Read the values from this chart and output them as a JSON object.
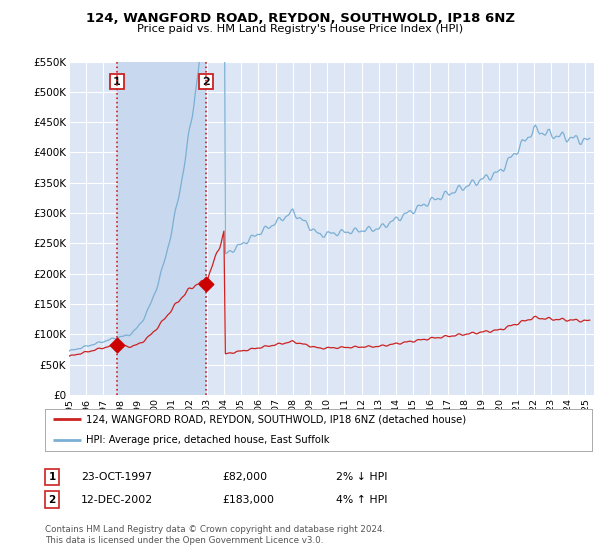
{
  "title": "124, WANGFORD ROAD, REYDON, SOUTHWOLD, IP18 6NZ",
  "subtitle": "Price paid vs. HM Land Registry's House Price Index (HPI)",
  "legend_line1": "124, WANGFORD ROAD, REYDON, SOUTHWOLD, IP18 6NZ (detached house)",
  "legend_line2": "HPI: Average price, detached house, East Suffolk",
  "transaction1_label": "1",
  "transaction1_date": "23-OCT-1997",
  "transaction1_price": "£82,000",
  "transaction1_hpi": "2% ↓ HPI",
  "transaction2_label": "2",
  "transaction2_date": "12-DEC-2002",
  "transaction2_price": "£183,000",
  "transaction2_hpi": "4% ↑ HPI",
  "footer": "Contains HM Land Registry data © Crown copyright and database right 2024.\nThis data is licensed under the Open Government Licence v3.0.",
  "ylim": [
    0,
    550000
  ],
  "yticks": [
    0,
    50000,
    100000,
    150000,
    200000,
    250000,
    300000,
    350000,
    400000,
    450000,
    500000,
    550000
  ],
  "background_color": "#ffffff",
  "plot_bg_color": "#dce6f5",
  "shade_color": "#c8d8ee",
  "grid_color": "#ffffff",
  "hpi_line_color": "#7bafd4",
  "price_line_color": "#cc2222",
  "marker_color": "#cc0000",
  "dashed_line_color": "#cc2222",
  "transaction1_x": 1997.79,
  "transaction2_x": 2002.96,
  "price_t1": 82000,
  "price_t2": 183000
}
